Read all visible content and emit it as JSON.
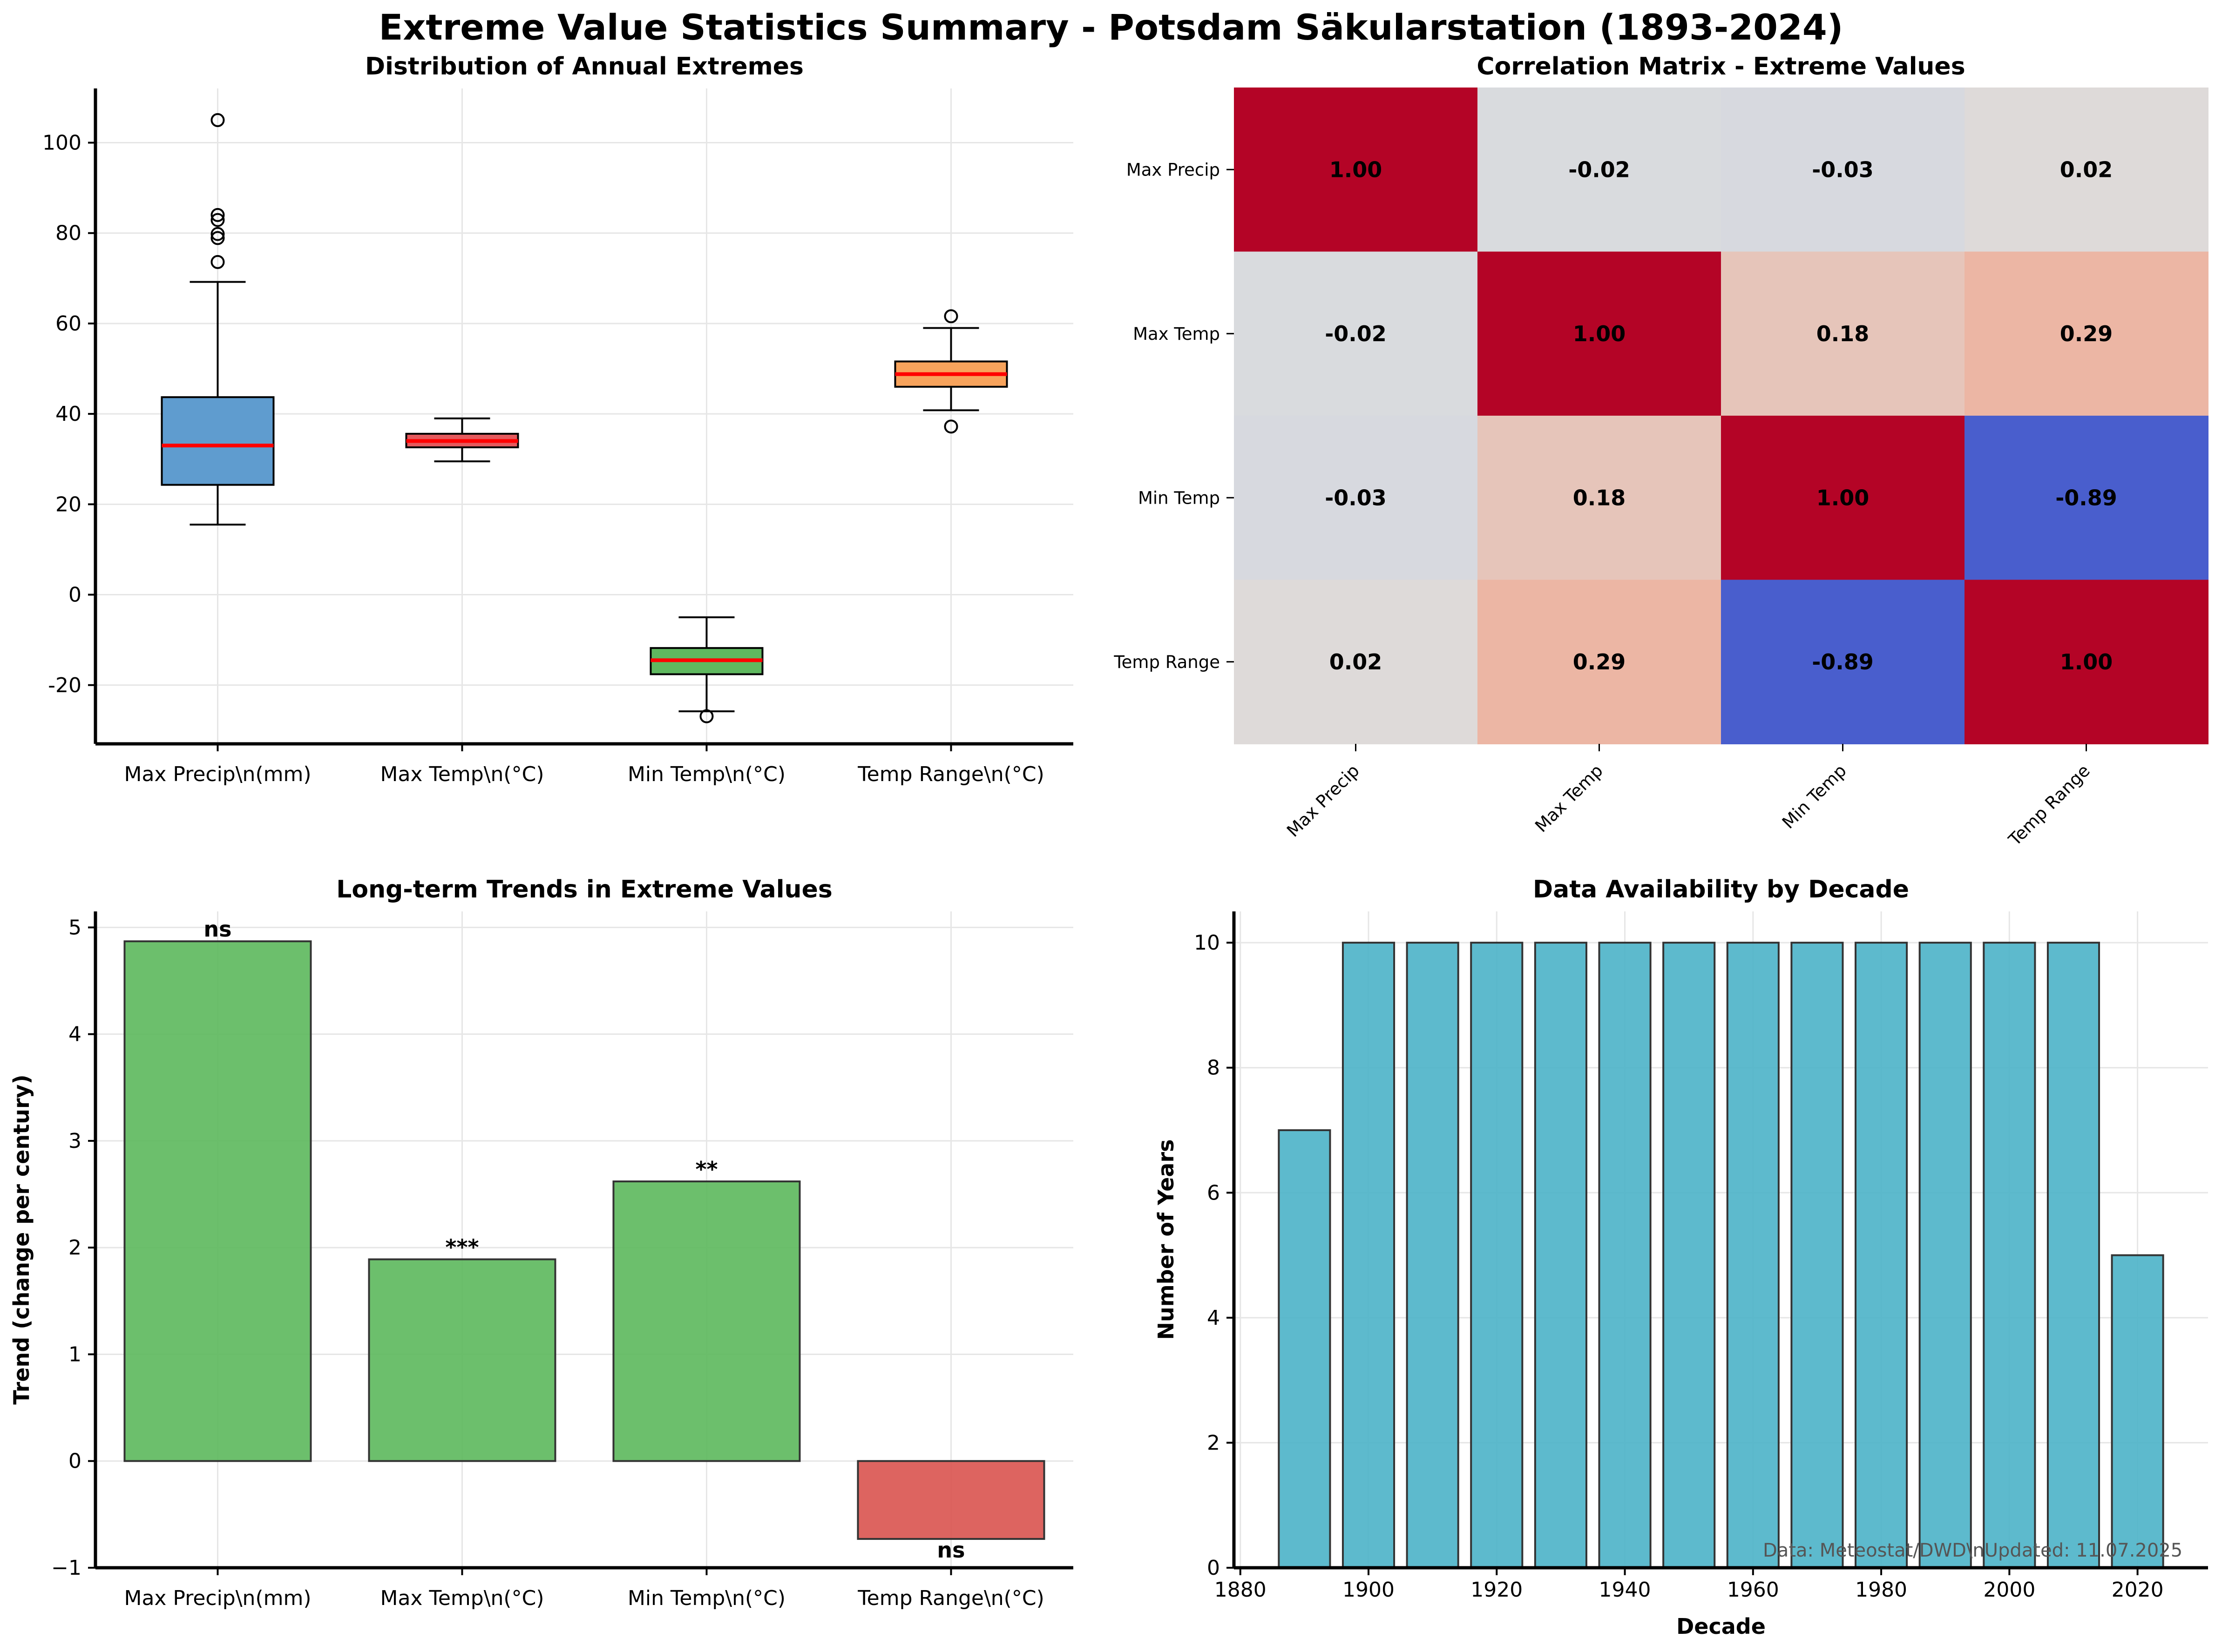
{
  "suptitle": "Extreme Value Statistics Summary - Potsdam Säkularstation (1893-2024)",
  "footnote": "Data: Meteostat/DWD\\nUpdated: 11.07.2025",
  "chart_data": [
    {
      "type": "box",
      "title": "Distribution of Annual Extremes",
      "categories": [
        "Max Precip\\n(mm)",
        "Max Temp\\n(°C)",
        "Min Temp\\n(°C)",
        "Temp Range\\n(°C)"
      ],
      "colors": [
        "#5f9ccf",
        "#e5595c",
        "#5fb85f",
        "#f7a35c"
      ],
      "median_color": "#ff0000",
      "boxes": [
        {
          "whislo": 15.5,
          "q1": 24.3,
          "med": 33.0,
          "q3": 43.7,
          "whishi": 69.2,
          "fliers": [
            73.6,
            78.9,
            79.8,
            82.9,
            84.0,
            105.0
          ]
        },
        {
          "whislo": 29.5,
          "q1": 32.6,
          "med": 34.0,
          "q3": 35.6,
          "whishi": 39.0,
          "fliers": []
        },
        {
          "whislo": -25.8,
          "q1": -17.6,
          "med": -14.5,
          "q3": -11.8,
          "whishi": -5.0,
          "fliers": [
            -26.9
          ]
        },
        {
          "whislo": 40.8,
          "q1": 46.0,
          "med": 48.8,
          "q3": 51.6,
          "whishi": 59.0,
          "fliers": [
            61.6,
            37.2
          ]
        }
      ],
      "yticks": [
        -20,
        0,
        20,
        40,
        60,
        80,
        100
      ],
      "ylim": [
        -33,
        112
      ],
      "grid": true
    },
    {
      "type": "heatmap",
      "title": "Correlation Matrix - Extreme Values",
      "labels": [
        "Max Precip",
        "Max Temp",
        "Min Temp",
        "Temp Range"
      ],
      "matrix": [
        [
          1.0,
          -0.02,
          -0.03,
          0.02
        ],
        [
          -0.02,
          1.0,
          0.18,
          0.29
        ],
        [
          -0.03,
          0.18,
          1.0,
          -0.89
        ],
        [
          0.02,
          0.29,
          -0.89,
          1.0
        ]
      ],
      "colormap": "coolwarm",
      "vmin": -1,
      "vmax": 1
    },
    {
      "type": "bar",
      "title": "Long-term Trends in Extreme Values",
      "ylabel": "Trend (change per century)",
      "categories": [
        "Max Precip\\n(mm)",
        "Max Temp\\n(°C)",
        "Min Temp\\n(°C)",
        "Temp Range\\n(°C)"
      ],
      "values": [
        4.87,
        1.89,
        2.62,
        -0.73
      ],
      "significance": [
        "ns",
        "***",
        "**",
        "ns"
      ],
      "positive_color": "#5cb85c",
      "negative_color": "#d9534f",
      "yticks": [
        -1,
        0,
        1,
        2,
        3,
        4,
        5
      ],
      "ylim": [
        -1.0,
        5.15
      ],
      "grid": true
    },
    {
      "type": "bar",
      "title": "Data Availability by Decade",
      "xlabel": "Decade",
      "ylabel": "Number of Years",
      "x": [
        1890,
        1900,
        1910,
        1920,
        1930,
        1940,
        1950,
        1960,
        1970,
        1980,
        1990,
        2000,
        2010,
        2020
      ],
      "values": [
        7,
        10,
        10,
        10,
        10,
        10,
        10,
        10,
        10,
        10,
        10,
        10,
        10,
        5
      ],
      "bar_color": "#4bb3c8",
      "xticks": [
        1880,
        1900,
        1920,
        1940,
        1960,
        1980,
        2000,
        2020
      ],
      "yticks": [
        0,
        2,
        4,
        6,
        8,
        10
      ],
      "xlim": [
        1879,
        2031
      ],
      "ylim": [
        0,
        10.5
      ],
      "grid": true
    }
  ]
}
